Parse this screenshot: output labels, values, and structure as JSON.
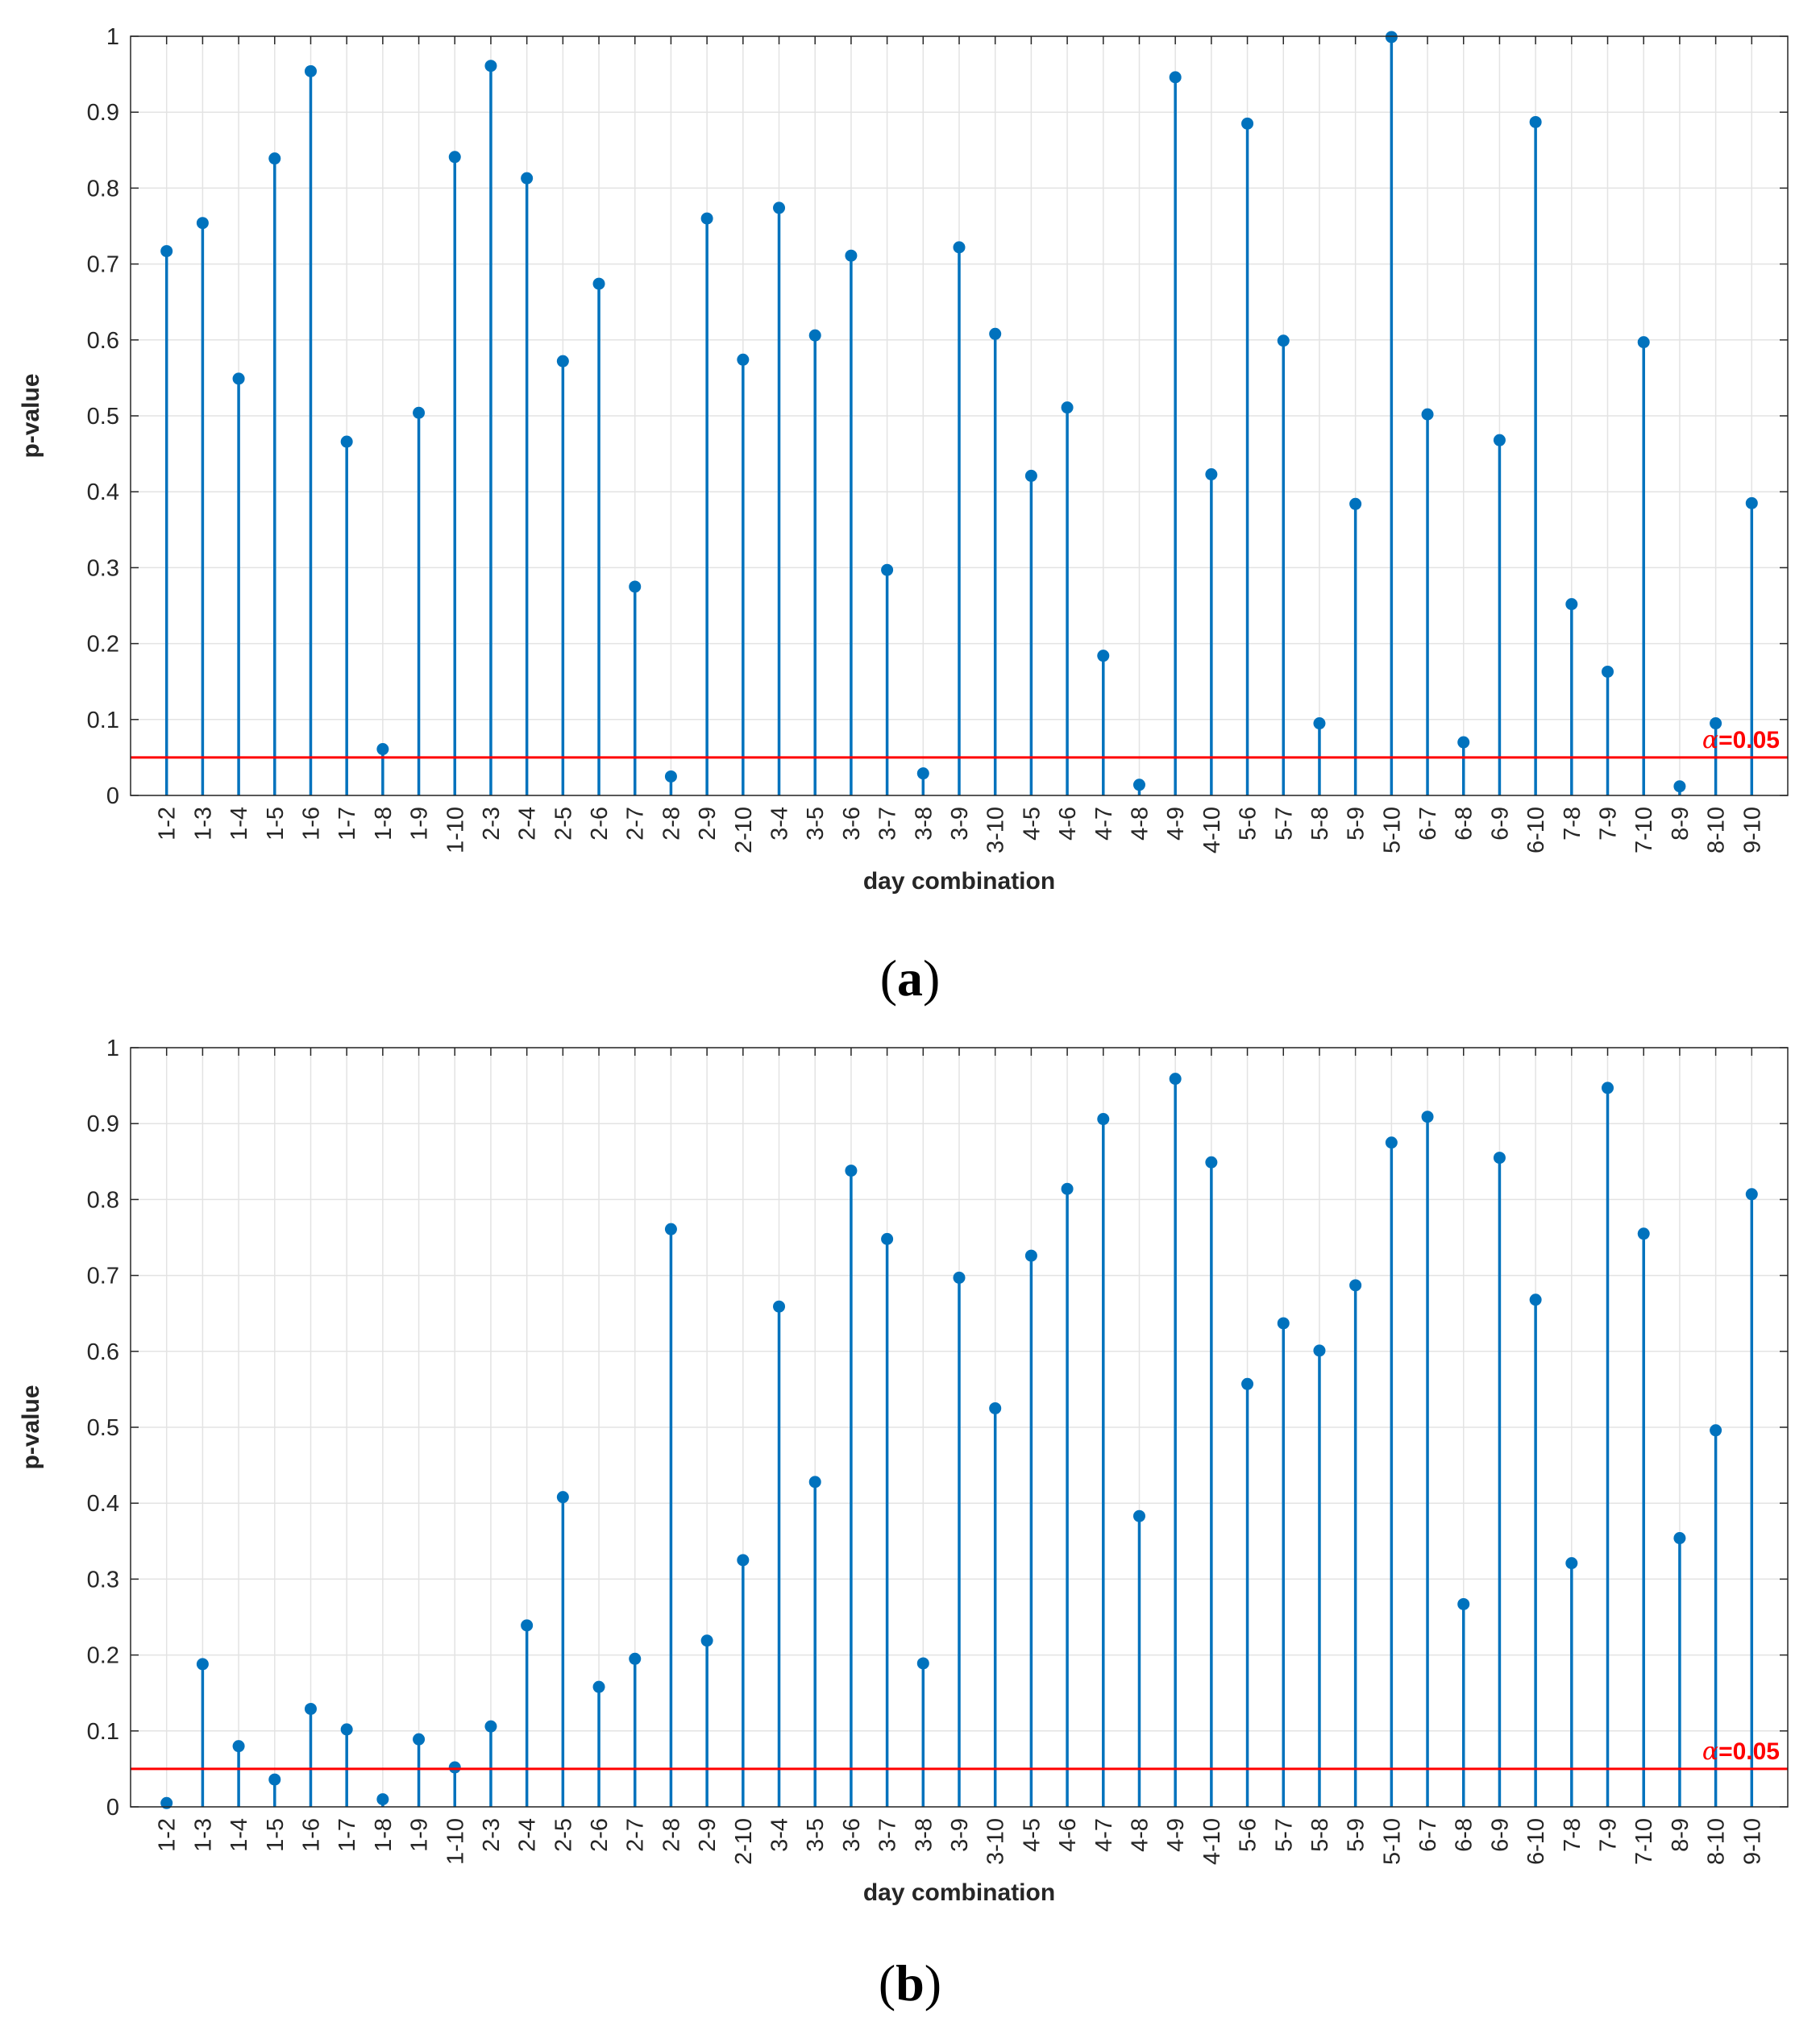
{
  "chart_data": [
    {
      "panel": "a",
      "caption": "(a)",
      "caption_parts": {
        "open": "(",
        "letter": "a",
        "close": ")"
      },
      "type": "stem",
      "xlabel": "day combination",
      "ylabel": "p-value",
      "ylim": [
        0,
        1
      ],
      "yticks": [
        "0",
        "0.1",
        "0.2",
        "0.3",
        "0.4",
        "0.5",
        "0.6",
        "0.7",
        "0.8",
        "0.9",
        "1"
      ],
      "grid": true,
      "series_color": "#0072BD",
      "threshold": {
        "value": 0.05,
        "label_symbol": "α",
        "label_value": "=0.05",
        "color": "#FF0000"
      },
      "categories": [
        "1-2",
        "1-3",
        "1-4",
        "1-5",
        "1-6",
        "1-7",
        "1-8",
        "1-9",
        "1-10",
        "2-3",
        "2-4",
        "2-5",
        "2-6",
        "2-7",
        "2-8",
        "2-9",
        "2-10",
        "3-4",
        "3-5",
        "3-6",
        "3-7",
        "3-8",
        "3-9",
        "3-10",
        "4-5",
        "4-6",
        "4-7",
        "4-8",
        "4-9",
        "4-10",
        "5-6",
        "5-7",
        "5-8",
        "5-9",
        "5-10",
        "6-7",
        "6-8",
        "6-9",
        "6-10",
        "7-8",
        "7-9",
        "7-10",
        "8-9",
        "8-10",
        "9-10"
      ],
      "values": [
        0.717,
        0.754,
        0.549,
        0.839,
        0.954,
        0.466,
        0.061,
        0.504,
        0.841,
        0.961,
        0.813,
        0.572,
        0.674,
        0.275,
        0.025,
        0.76,
        0.574,
        0.774,
        0.606,
        0.711,
        0.297,
        0.029,
        0.722,
        0.608,
        0.421,
        0.511,
        0.184,
        0.014,
        0.946,
        0.423,
        0.885,
        0.599,
        0.095,
        0.384,
        0.999,
        0.502,
        0.07,
        0.468,
        0.887,
        0.252,
        0.163,
        0.597,
        0.012,
        0.095,
        0.385
      ]
    },
    {
      "panel": "b",
      "caption": "(b)",
      "caption_parts": {
        "open": "(",
        "letter": "b",
        "close": ")"
      },
      "type": "stem",
      "xlabel": "day combination",
      "ylabel": "p-value",
      "ylim": [
        0,
        1
      ],
      "yticks": [
        "0",
        "0.1",
        "0.2",
        "0.3",
        "0.4",
        "0.5",
        "0.6",
        "0.7",
        "0.8",
        "0.9",
        "1"
      ],
      "grid": true,
      "series_color": "#0072BD",
      "threshold": {
        "value": 0.05,
        "label_symbol": "α",
        "label_value": "=0.05",
        "color": "#FF0000"
      },
      "categories": [
        "1-2",
        "1-3",
        "1-4",
        "1-5",
        "1-6",
        "1-7",
        "1-8",
        "1-9",
        "1-10",
        "2-3",
        "2-4",
        "2-5",
        "2-6",
        "2-7",
        "2-8",
        "2-9",
        "2-10",
        "3-4",
        "3-5",
        "3-6",
        "3-7",
        "3-8",
        "3-9",
        "3-10",
        "4-5",
        "4-6",
        "4-7",
        "4-8",
        "4-9",
        "4-10",
        "5-6",
        "5-7",
        "5-8",
        "5-9",
        "5-10",
        "6-7",
        "6-8",
        "6-9",
        "6-10",
        "7-8",
        "7-9",
        "7-10",
        "8-9",
        "8-10",
        "9-10"
      ],
      "values": [
        0.005,
        0.188,
        0.08,
        0.036,
        0.129,
        0.102,
        0.01,
        0.089,
        0.052,
        0.106,
        0.239,
        0.408,
        0.158,
        0.195,
        0.761,
        0.219,
        0.325,
        0.659,
        0.428,
        0.838,
        0.748,
        0.189,
        0.697,
        0.525,
        0.726,
        0.814,
        0.906,
        0.383,
        0.959,
        0.849,
        0.557,
        0.637,
        0.601,
        0.687,
        0.875,
        0.909,
        0.267,
        0.855,
        0.668,
        0.321,
        0.947,
        0.755,
        0.354,
        0.496,
        0.807
      ]
    }
  ]
}
